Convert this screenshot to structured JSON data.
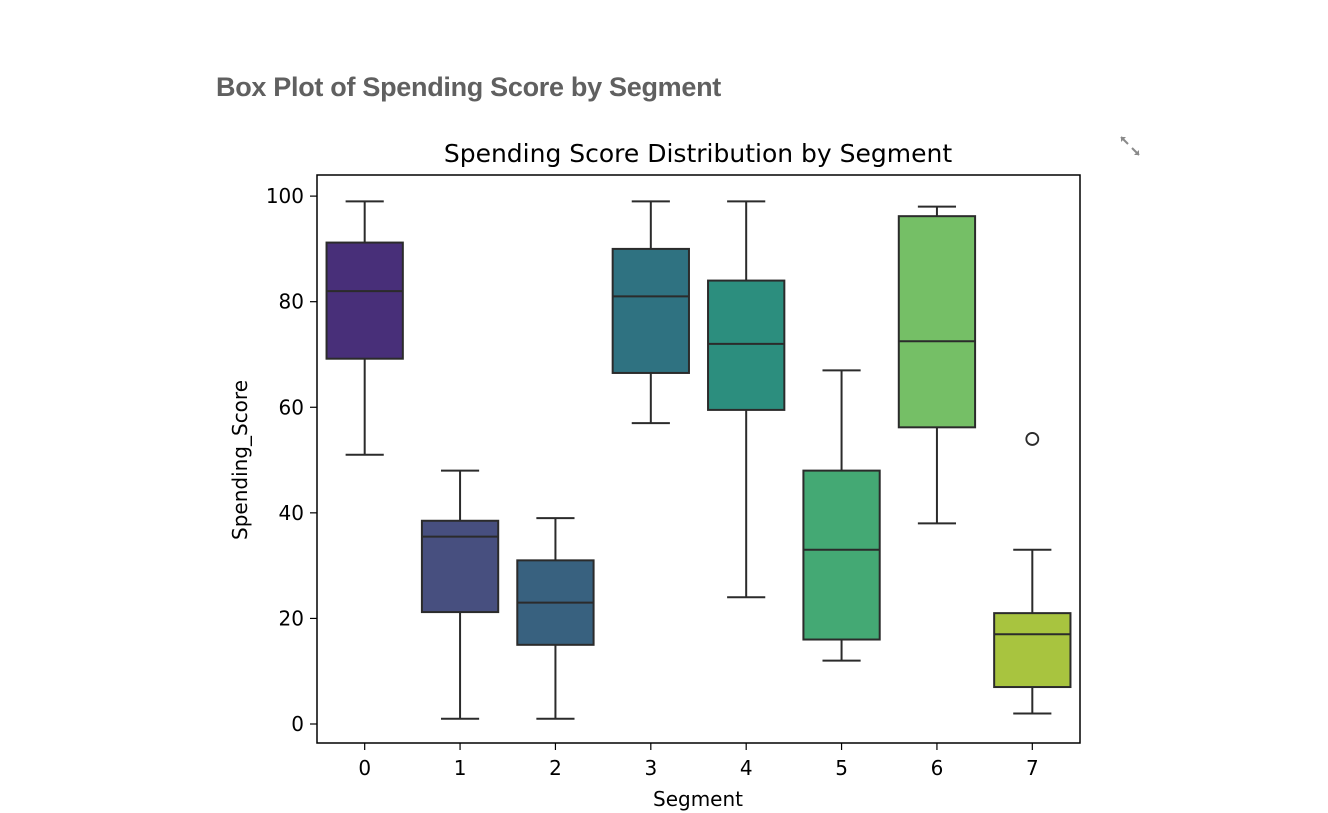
{
  "page": {
    "section_heading": "Box Plot of Spending Score by Segment",
    "expand_icon": "expand-arrows-icon"
  },
  "chart_data": {
    "type": "box",
    "title": "Spending Score Distribution by Segment",
    "xlabel": "Segment",
    "ylabel": "Spending_Score",
    "ylim": [
      -3.6,
      104
    ],
    "yticks": [
      0,
      20,
      40,
      60,
      80,
      100
    ],
    "grid": false,
    "categories": [
      "0",
      "1",
      "2",
      "3",
      "4",
      "5",
      "6",
      "7"
    ],
    "boxes": [
      {
        "category": "0",
        "whisker_low": 51,
        "q1": 69.2,
        "median": 82,
        "q3": 91.2,
        "whisker_high": 99,
        "outliers": [],
        "color": "#472d7b"
      },
      {
        "category": "1",
        "whisker_low": 1,
        "q1": 21.2,
        "median": 35.5,
        "q3": 38.5,
        "whisker_high": 48,
        "outliers": [],
        "color": "#3b528b"
      },
      {
        "category": "2",
        "whisker_low": 1,
        "q1": 15,
        "median": 23,
        "q3": 31,
        "whisker_high": 39,
        "outliers": [],
        "color": "#2c728e"
      },
      {
        "category": "3",
        "whisker_low": 57,
        "q1": 66.5,
        "median": 81,
        "q3": 90,
        "whisker_high": 99,
        "outliers": [],
        "color": "#21918c"
      },
      {
        "category": "4",
        "whisker_low": 24,
        "q1": 59.5,
        "median": 72,
        "q3": 84,
        "whisker_high": 99,
        "outliers": [],
        "color": "#28ae80"
      },
      {
        "category": "5",
        "whisker_low": 12,
        "q1": 16,
        "median": 33,
        "q3": 48,
        "whisker_high": 67,
        "outliers": [],
        "color": "#5ec962"
      },
      {
        "category": "6",
        "whisker_low": 38,
        "q1": 56.2,
        "median": 72.5,
        "q3": 96.2,
        "whisker_high": 98,
        "outliers": [],
        "color": "#addc30"
      },
      {
        "category": "7",
        "whisker_low": 2,
        "q1": 7,
        "median": 17,
        "q3": 21,
        "whisker_high": 33,
        "outliers": [
          54
        ],
        "color": "#fde725"
      }
    ],
    "box_colors_actual": [
      "#482f79",
      "#474f7f",
      "#38617f",
      "#2f7281",
      "#2c8e7e",
      "#44a974",
      "#75bf66",
      "#a8c43f"
    ],
    "line_color": "#2b2b2b"
  }
}
